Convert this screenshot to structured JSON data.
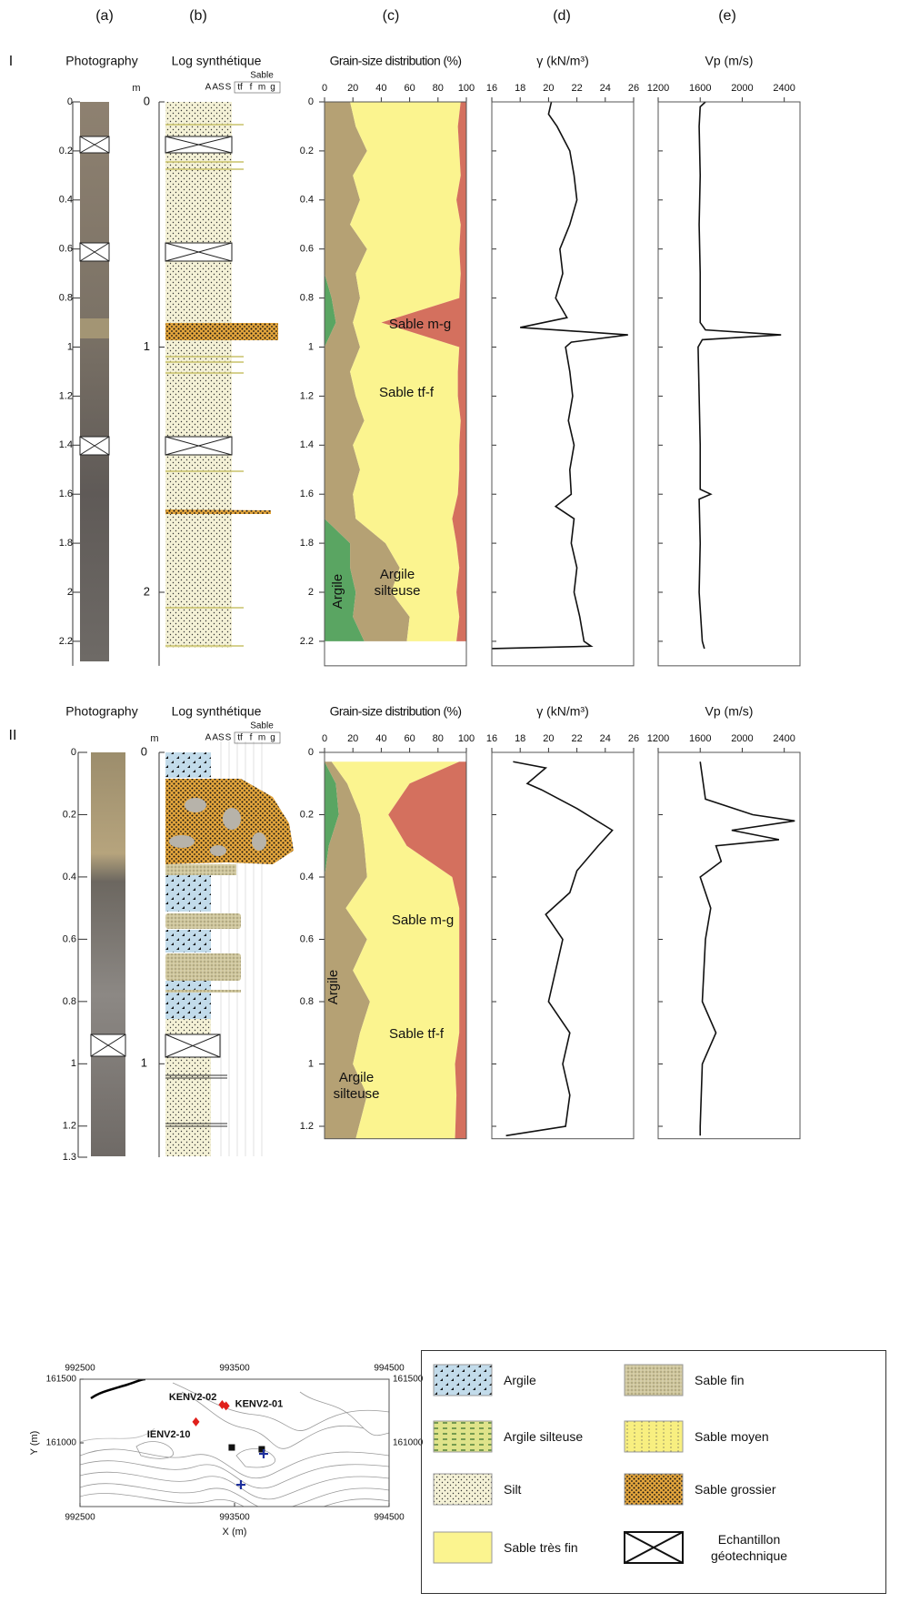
{
  "column_labels": [
    "(a)",
    "(b)",
    "(c)",
    "(d)",
    "(e)"
  ],
  "panels": [
    {
      "label": "I",
      "photo_title": "Photography",
      "photo_lim": [
        0,
        2.3
      ],
      "photo_ticks": [
        0,
        0.2,
        0.4,
        0.6,
        0.8,
        1,
        1.2,
        1.4,
        1.6,
        1.8,
        2,
        2.2
      ],
      "log_title": "Log synthétique",
      "log_unit": "m",
      "log_lim": [
        0,
        2.3
      ],
      "log_ticks": [
        0,
        1,
        2
      ],
      "log_columns": [
        "A",
        "AS",
        "S",
        "tf",
        "f",
        "m",
        "g"
      ],
      "log_group": "Sable"
    },
    {
      "label": "II",
      "photo_title": "Photography",
      "photo_lim": [
        0,
        1.3
      ],
      "photo_ticks": [
        0,
        0.2,
        0.4,
        0.6,
        0.8,
        1,
        1.2,
        1.3
      ],
      "log_title": "Log synthétique",
      "log_unit": "m",
      "log_lim": [
        0,
        1.3
      ],
      "log_ticks": [
        0,
        1
      ],
      "log_columns": [
        "A",
        "AS",
        "S",
        "tf",
        "f",
        "m",
        "g"
      ],
      "log_group": "Sable"
    }
  ],
  "chart_data": [
    {
      "type": "area",
      "title": "Grain-size distribution (%)",
      "x": [
        0,
        0.1,
        0.2,
        0.3,
        0.4,
        0.5,
        0.6,
        0.7,
        0.8,
        0.9,
        1,
        1.1,
        1.2,
        1.3,
        1.4,
        1.5,
        1.6,
        1.7,
        1.8,
        1.9,
        2,
        2.1,
        2.2
      ],
      "xlim": [
        0,
        2.3
      ],
      "xticks": [
        0,
        0.2,
        0.4,
        0.6,
        0.8,
        1,
        1.2,
        1.4,
        1.6,
        1.8,
        2,
        2.2
      ],
      "ylim": [
        0,
        100
      ],
      "yticks": [
        0,
        20,
        40,
        60,
        80,
        100
      ],
      "series": [
        {
          "name": "Argile",
          "color": "#5aa562",
          "values": [
            0,
            0,
            0,
            0,
            0,
            0,
            0,
            0,
            5,
            8,
            0,
            0,
            0,
            0,
            0,
            0,
            0,
            0,
            18,
            18,
            22,
            20,
            28
          ]
        },
        {
          "name": "Argile silteuse",
          "color": "#b5a174",
          "values": [
            18,
            22,
            30,
            20,
            25,
            18,
            30,
            22,
            20,
            12,
            25,
            18,
            22,
            28,
            20,
            25,
            20,
            22,
            25,
            35,
            25,
            40,
            30
          ]
        },
        {
          "name": "Sable tf-f",
          "color": "#fbf48f",
          "values": [
            78,
            72,
            65,
            76,
            68,
            78,
            65,
            74,
            70,
            20,
            70,
            76,
            72,
            68,
            75,
            70,
            74,
            68,
            50,
            42,
            46,
            35,
            35
          ]
        },
        {
          "name": "Sable m-g",
          "color": "#d4705e",
          "values": [
            4,
            6,
            5,
            4,
            7,
            4,
            5,
            4,
            5,
            60,
            5,
            6,
            6,
            4,
            5,
            5,
            6,
            10,
            7,
            5,
            7,
            5,
            7
          ]
        }
      ]
    },
    {
      "type": "line",
      "title": "γ (kN/m³)",
      "x": [
        0,
        0.05,
        0.1,
        0.2,
        0.3,
        0.4,
        0.5,
        0.6,
        0.7,
        0.8,
        0.88,
        0.92,
        0.95,
        0.98,
        1,
        1.1,
        1.2,
        1.3,
        1.4,
        1.5,
        1.6,
        1.65,
        1.7,
        1.8,
        1.9,
        2,
        2.1,
        2.2,
        2.22,
        2.23
      ],
      "xlim": [
        0,
        2.3
      ],
      "xticks": [
        0,
        0.2,
        0.4,
        0.6,
        0.8,
        1,
        1.2,
        1.4,
        1.6,
        1.8,
        2,
        2.2
      ],
      "ylim": [
        16,
        26
      ],
      "yticks": [
        16,
        18,
        20,
        22,
        24,
        26
      ],
      "series": [
        {
          "color": "#111111",
          "values": [
            20.2,
            20.0,
            20.6,
            21.5,
            21.8,
            22.0,
            21.5,
            20.8,
            21.0,
            20.5,
            21.3,
            18.0,
            25.6,
            21.6,
            21.2,
            21.5,
            21.7,
            21.4,
            21.8,
            21.5,
            21.6,
            20.5,
            21.8,
            21.6,
            22.0,
            21.8,
            22.2,
            22.5,
            23.0,
            16.0
          ]
        }
      ]
    },
    {
      "type": "line",
      "title": "Vp (m/s)",
      "x": [
        0,
        0.02,
        0.1,
        0.3,
        0.5,
        0.7,
        0.9,
        0.93,
        0.95,
        0.97,
        1,
        1.2,
        1.4,
        1.58,
        1.6,
        1.62,
        1.8,
        2,
        2.2,
        2.23
      ],
      "xlim": [
        0,
        2.3
      ],
      "xticks": [
        0,
        0.2,
        0.4,
        0.6,
        0.8,
        1,
        1.2,
        1.4,
        1.6,
        1.8,
        2,
        2.2
      ],
      "ylim": [
        1200,
        2550
      ],
      "yticks": [
        1200,
        1600,
        2000,
        2400
      ],
      "series": [
        {
          "color": "#111111",
          "values": [
            1650,
            1600,
            1590,
            1600,
            1590,
            1600,
            1600,
            1650,
            2370,
            1620,
            1580,
            1590,
            1600,
            1600,
            1700,
            1590,
            1600,
            1590,
            1620,
            1640
          ]
        }
      ]
    },
    {
      "type": "area",
      "title": "Grain-size distribution (%)",
      "x": [
        0.03,
        0.1,
        0.2,
        0.3,
        0.4,
        0.5,
        0.6,
        0.7,
        0.8,
        0.9,
        1,
        1.1,
        1.24
      ],
      "xlim": [
        0,
        1.24
      ],
      "xticks": [
        0,
        0.2,
        0.4,
        0.6,
        0.8,
        1,
        1.2
      ],
      "ylim": [
        0,
        100
      ],
      "yticks": [
        0,
        20,
        40,
        60,
        80,
        100
      ],
      "series": [
        {
          "name": "Argile",
          "color": "#5aa562",
          "values": [
            0,
            8,
            10,
            3,
            0,
            0,
            0,
            0,
            0,
            0,
            0,
            0,
            0
          ]
        },
        {
          "name": "Argile silteuse",
          "color": "#b5a174",
          "values": [
            5,
            8,
            15,
            25,
            30,
            15,
            30,
            20,
            32,
            25,
            20,
            30,
            22
          ]
        },
        {
          "name": "Sable tf-f",
          "color": "#fbf48f",
          "values": [
            90,
            44,
            20,
            30,
            60,
            80,
            65,
            75,
            63,
            70,
            72,
            63,
            70
          ]
        },
        {
          "name": "Sable m-g",
          "color": "#d4705e",
          "values": [
            5,
            40,
            55,
            42,
            10,
            5,
            5,
            5,
            5,
            5,
            8,
            7,
            8
          ]
        }
      ]
    },
    {
      "type": "line",
      "title": "γ (kN/m³)",
      "x": [
        0.03,
        0.05,
        0.1,
        0.12,
        0.18,
        0.25,
        0.3,
        0.38,
        0.45,
        0.52,
        0.6,
        0.7,
        0.8,
        0.9,
        1,
        1.1,
        1.2,
        1.23
      ],
      "xlim": [
        0,
        1.24
      ],
      "xticks": [
        0,
        0.2,
        0.4,
        0.6,
        0.8,
        1,
        1.2
      ],
      "ylim": [
        16,
        26
      ],
      "yticks": [
        16,
        18,
        20,
        22,
        24,
        26
      ],
      "series": [
        {
          "color": "#111111",
          "values": [
            17.5,
            19.8,
            18.5,
            19.5,
            22,
            24.5,
            23.5,
            22,
            21.5,
            19.8,
            21,
            20.5,
            20,
            21.5,
            21,
            21.5,
            21.2,
            17
          ]
        }
      ]
    },
    {
      "type": "line",
      "title": "Vp (m/s)",
      "x": [
        0.03,
        0.15,
        0.2,
        0.22,
        0.25,
        0.28,
        0.3,
        0.35,
        0.4,
        0.5,
        0.6,
        0.8,
        0.9,
        1,
        1.2,
        1.23
      ],
      "xlim": [
        0,
        1.24
      ],
      "xticks": [
        0,
        0.2,
        0.4,
        0.6,
        0.8,
        1,
        1.2
      ],
      "ylim": [
        1200,
        2550
      ],
      "yticks": [
        1200,
        1600,
        2000,
        2400
      ],
      "series": [
        {
          "color": "#111111",
          "values": [
            1600,
            1650,
            2100,
            2500,
            1900,
            2350,
            1750,
            1800,
            1600,
            1700,
            1650,
            1620,
            1750,
            1620,
            1600,
            1600
          ]
        }
      ]
    },
    {
      "type": "scatter",
      "xlabel": "X (m)",
      "ylabel": "Y (m)",
      "xlim": [
        992500,
        994500
      ],
      "xticks": [
        992500,
        993500,
        994500
      ],
      "ylim": [
        160500,
        161500
      ],
      "yticks": [
        161000,
        161500
      ],
      "series": [
        {
          "color": "#e0201b",
          "marker": "diamond",
          "x": [
            993420,
            993445,
            993250
          ],
          "values": [
            161300,
            161290,
            161165
          ],
          "labels": [
            "KENV2-02",
            "KENV2-01",
            "IENV2-10"
          ]
        },
        {
          "color": "#111111",
          "marker": "square",
          "x": [
            993482,
            993676
          ],
          "values": [
            160964,
            160950
          ]
        },
        {
          "color": "#1d2f9c",
          "marker": "cross",
          "x": [
            993541,
            993688
          ],
          "values": [
            160671,
            160914
          ]
        }
      ]
    }
  ],
  "legend": {
    "items": [
      "Argile",
      "Argile silteuse",
      "Silt",
      "Sable très fin",
      "Sable fin",
      "Sable moyen",
      "Sable grossier",
      "Echantillon géotechnique"
    ]
  }
}
